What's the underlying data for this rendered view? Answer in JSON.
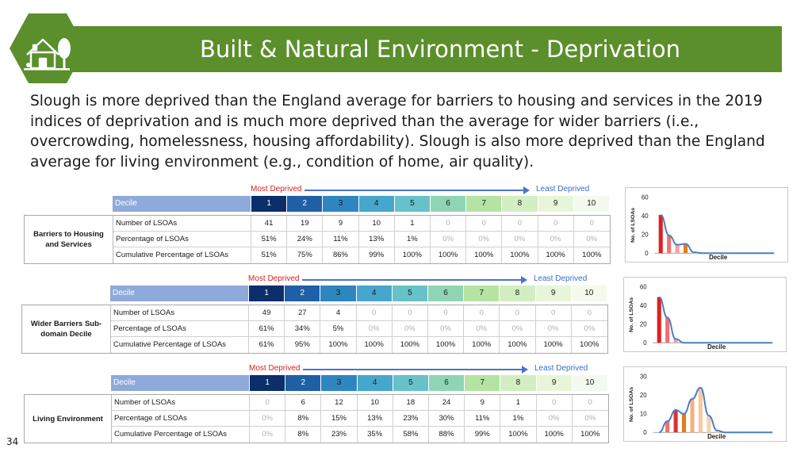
{
  "title": "Built & Natural Environment - Deprivation",
  "intro": "Slough is more deprived than the England average for barriers to housing and services in the 2019 indices of deprivation and is much more deprived than the average for wider barriers (i.e., overcrowding, homelessness, housing affordability). Slough is also more deprived than the England average for living environment (e.g., condition of home, air quality).",
  "page_number": "34",
  "logo": {
    "icon": "house-tree-icon",
    "fill": "#5a8f2c",
    "stroke": "#ffffff"
  },
  "most_deprived_label": "Most Deprived",
  "least_deprived_label": "Least Deprived",
  "decile_header": "Decile",
  "deciles": [
    "1",
    "2",
    "3",
    "4",
    "5",
    "6",
    "7",
    "8",
    "9",
    "10"
  ],
  "decile_colors": [
    "#0b2f6b",
    "#1f5fa6",
    "#2e86c1",
    "#46a6cc",
    "#67c1c8",
    "#8fd5b5",
    "#b4e3a4",
    "#d3efc2",
    "#e7f6d8",
    "#f4faee"
  ],
  "decile_text_colors": [
    "#ffffff",
    "#ffffff",
    "#1a1a1a",
    "#1a1a1a",
    "#1a1a1a",
    "#1a1a1a",
    "#1a1a1a",
    "#1a1a1a",
    "#1a1a1a",
    "#1a1a1a"
  ],
  "row_labels": [
    "Number of LSOAs",
    "Percentage of LSOAs",
    "Cumulative Percentage of LSOAs"
  ],
  "colors": {
    "title_bar": "#5a8f2c",
    "most_deprived": "#d22222",
    "least_deprived": "#3a6ec6",
    "curve": "#4a7fc0"
  },
  "tables": [
    {
      "title": "Barriers to Housing and Services",
      "number": [
        "41",
        "19",
        "9",
        "10",
        "1",
        "0",
        "0",
        "0",
        "0",
        "0"
      ],
      "percentage": [
        "51%",
        "24%",
        "11%",
        "13%",
        "1%",
        "0%",
        "0%",
        "0%",
        "0%",
        "0%"
      ],
      "cumulative": [
        "51%",
        "75%",
        "86%",
        "99%",
        "100%",
        "100%",
        "100%",
        "100%",
        "100%",
        "100%"
      ]
    },
    {
      "title": "Wider Barriers Sub-domain Decile",
      "number": [
        "49",
        "27",
        "4",
        "0",
        "0",
        "0",
        "0",
        "0",
        "0",
        "0"
      ],
      "percentage": [
        "61%",
        "34%",
        "5%",
        "0%",
        "0%",
        "0%",
        "0%",
        "0%",
        "0%",
        "0%"
      ],
      "cumulative": [
        "61%",
        "95%",
        "100%",
        "100%",
        "100%",
        "100%",
        "100%",
        "100%",
        "100%",
        "100%"
      ]
    },
    {
      "title": "Living Environment",
      "number": [
        "0",
        "6",
        "12",
        "10",
        "18",
        "24",
        "9",
        "1",
        "0",
        "0"
      ],
      "percentage": [
        "0%",
        "8%",
        "15%",
        "13%",
        "23%",
        "30%",
        "11%",
        "1%",
        "0%",
        "0%"
      ],
      "cumulative": [
        "0%",
        "8%",
        "23%",
        "35%",
        "58%",
        "88%",
        "99%",
        "100%",
        "100%",
        "100%"
      ]
    }
  ],
  "chart_data": [
    {
      "type": "bar",
      "title": "",
      "xlabel": "Decile",
      "ylabel": "No. of LSOAs",
      "ylim": [
        0,
        60
      ],
      "yticks": [
        "0",
        "20",
        "40",
        "60"
      ],
      "categories": [
        "1",
        "2",
        "3",
        "4",
        "5",
        "6",
        "7",
        "8",
        "9",
        "10"
      ],
      "values": [
        41,
        19,
        9,
        10,
        1,
        0,
        0,
        0,
        0,
        0
      ],
      "bar_colors": [
        "#e02020",
        "#f07070",
        "#f4a0a0",
        "#e57a1a",
        "#f5c9a0",
        "#f5c9a0",
        "#f5c9a0",
        "#f5c9a0",
        "#f5c9a0",
        "#f5c9a0"
      ],
      "trend_line": true,
      "grid": false,
      "legend": "none"
    },
    {
      "type": "bar",
      "title": "",
      "xlabel": "Decile",
      "ylabel": "No. of LSOAs",
      "ylim": [
        0,
        60
      ],
      "yticks": [
        "0",
        "20",
        "40",
        "60"
      ],
      "categories": [
        "1",
        "2",
        "3",
        "4",
        "5",
        "6",
        "7",
        "8",
        "9",
        "10"
      ],
      "values": [
        49,
        27,
        4,
        0,
        0,
        0,
        0,
        0,
        0,
        0
      ],
      "bar_colors": [
        "#e02020",
        "#f07070",
        "#f4a0a0",
        "#e57a1a",
        "#f5c9a0",
        "#f5c9a0",
        "#f5c9a0",
        "#f5c9a0",
        "#f5c9a0",
        "#f5c9a0"
      ],
      "trend_line": true,
      "grid": false,
      "legend": "none"
    },
    {
      "type": "bar",
      "title": "",
      "xlabel": "Decile",
      "ylabel": "No. of LSOAs",
      "ylim": [
        0,
        30
      ],
      "yticks": [
        "0",
        "10",
        "20",
        "30"
      ],
      "categories": [
        "1",
        "2",
        "3",
        "4",
        "5",
        "6",
        "7",
        "8",
        "9",
        "10"
      ],
      "values": [
        0,
        6,
        12,
        10,
        18,
        24,
        9,
        1,
        0,
        0
      ],
      "bar_colors": [
        "#e02020",
        "#f07070",
        "#e03030",
        "#e57a1a",
        "#f5b080",
        "#f8c8a0",
        "#f8d0b0",
        "#f8d8c0",
        "#f8d8c0",
        "#f8d8c0"
      ],
      "trend_line": true,
      "grid": false,
      "legend": "none"
    }
  ]
}
